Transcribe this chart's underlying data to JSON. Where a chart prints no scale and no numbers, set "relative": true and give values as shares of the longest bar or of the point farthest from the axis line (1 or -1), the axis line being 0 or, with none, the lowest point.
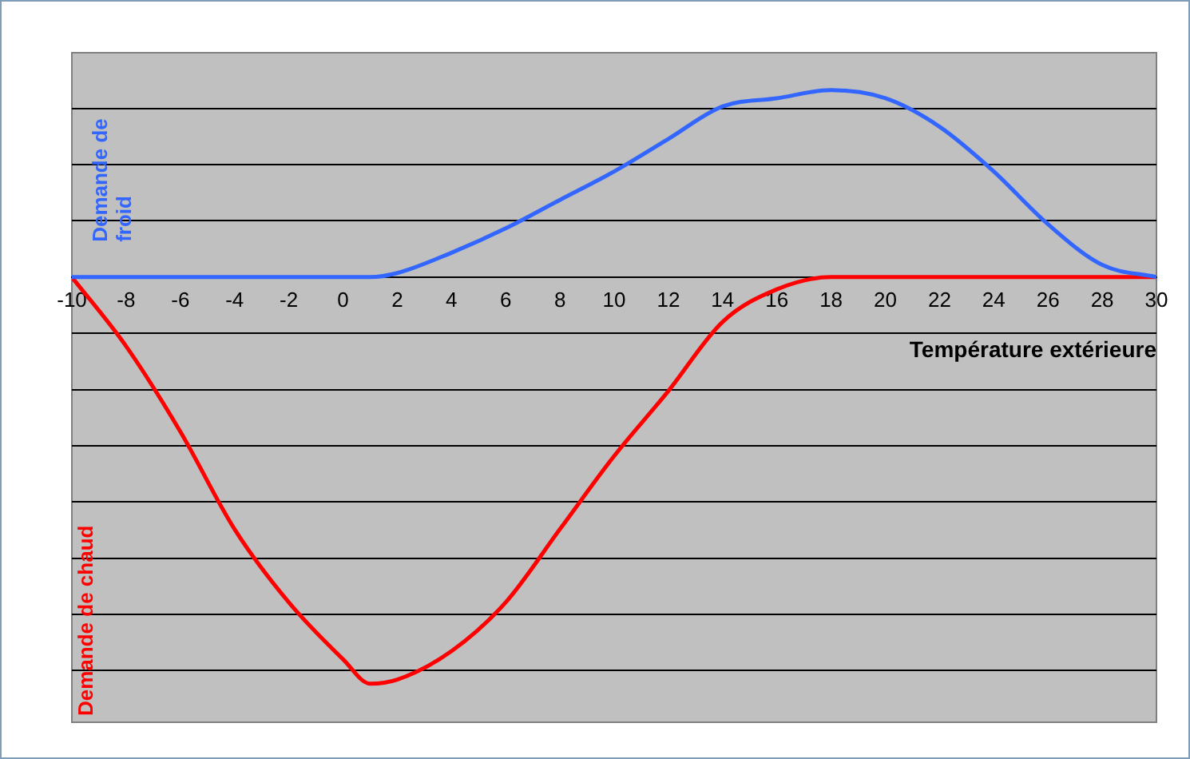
{
  "chart_data": {
    "type": "line",
    "xlabel": "Température extérieure",
    "relative": true,
    "grid": "y",
    "legend": false,
    "marker": "none",
    "line_style": "solid",
    "x": [
      -10,
      -8,
      -6,
      -4,
      -2,
      0,
      1,
      2,
      4,
      6,
      8,
      10,
      12,
      14,
      16,
      18,
      20,
      22,
      24,
      26,
      28,
      30
    ],
    "xlim": [
      -10,
      30
    ],
    "xticks": [
      -10,
      -8,
      -6,
      -4,
      -2,
      0,
      2,
      4,
      6,
      8,
      10,
      12,
      14,
      16,
      18,
      20,
      22,
      24,
      26,
      28,
      30
    ],
    "series": [
      {
        "name": "Demande de froid",
        "color": "#3366ff",
        "values": [
          0,
          0,
          0,
          0,
          0,
          0,
          0,
          0.01,
          0.06,
          0.12,
          0.19,
          0.26,
          0.34,
          0.42,
          0.44,
          0.46,
          0.44,
          0.37,
          0.26,
          0.13,
          0.03,
          0
        ]
      },
      {
        "name": "Demande de chaud",
        "color": "#ff0000",
        "values": [
          0,
          -0.17,
          -0.38,
          -0.62,
          -0.8,
          -0.94,
          -1,
          -0.99,
          -0.92,
          -0.8,
          -0.62,
          -0.44,
          -0.28,
          -0.11,
          -0.03,
          0,
          0,
          0,
          0,
          0,
          0,
          0
        ]
      }
    ]
  }
}
